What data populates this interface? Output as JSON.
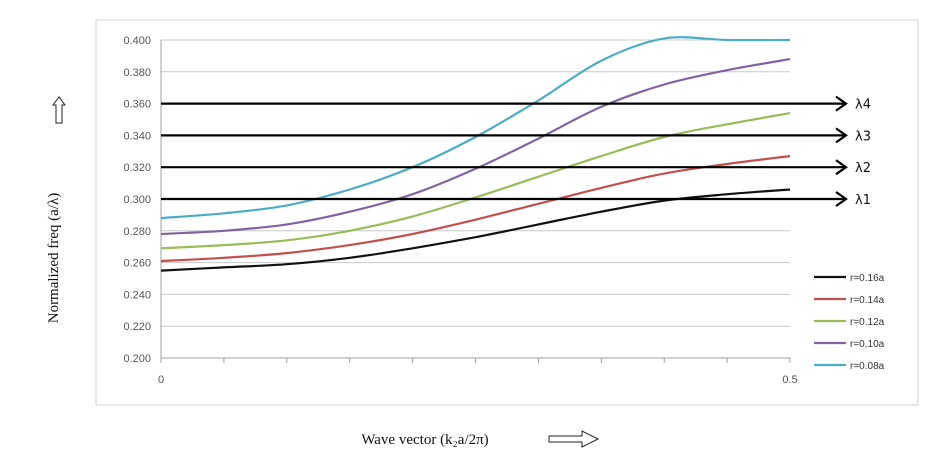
{
  "chart_data": {
    "type": "line",
    "xlabel": "Wave vector  (k₂a/2π)",
    "ylabel": "Normalized freq (a/λ)",
    "xlim": [
      0,
      0.5
    ],
    "ylim": [
      0.2,
      0.4
    ],
    "x_ticks": [
      "0",
      "0.5"
    ],
    "y_ticks": [
      "0.200",
      "0.220",
      "0.240",
      "0.260",
      "0.280",
      "0.300",
      "0.320",
      "0.340",
      "0.360",
      "0.380",
      "0.400"
    ],
    "grid": true,
    "legend_position": "right",
    "x": [
      0,
      0.05,
      0.1,
      0.15,
      0.2,
      0.25,
      0.3,
      0.35,
      0.4,
      0.45,
      0.5
    ],
    "series": [
      {
        "name": "r=0.16a",
        "color": "#111111",
        "values": [
          0.255,
          0.257,
          0.259,
          0.263,
          0.269,
          0.276,
          0.284,
          0.292,
          0.299,
          0.303,
          0.306
        ]
      },
      {
        "name": "r=0.14a",
        "color": "#c0504d",
        "values": [
          0.261,
          0.263,
          0.266,
          0.271,
          0.278,
          0.287,
          0.297,
          0.307,
          0.316,
          0.322,
          0.327
        ]
      },
      {
        "name": "r=0.12a",
        "color": "#9bbb59",
        "values": [
          0.269,
          0.271,
          0.274,
          0.28,
          0.289,
          0.301,
          0.314,
          0.327,
          0.339,
          0.347,
          0.354
        ]
      },
      {
        "name": "r=0.10a",
        "color": "#8064a2",
        "values": [
          0.278,
          0.28,
          0.284,
          0.292,
          0.303,
          0.319,
          0.338,
          0.358,
          0.372,
          0.381,
          0.388
        ]
      },
      {
        "name": "r=0.08a",
        "color": "#4bacc6",
        "values": [
          0.288,
          0.291,
          0.296,
          0.306,
          0.32,
          0.339,
          0.362,
          0.387,
          0.401,
          0.4,
          0.4
        ]
      }
    ],
    "reference_lines": [
      {
        "label": "λ1",
        "y": 0.3
      },
      {
        "label": "λ2",
        "y": 0.32
      },
      {
        "label": "λ3",
        "y": 0.34
      },
      {
        "label": "λ4",
        "y": 0.36
      }
    ]
  }
}
